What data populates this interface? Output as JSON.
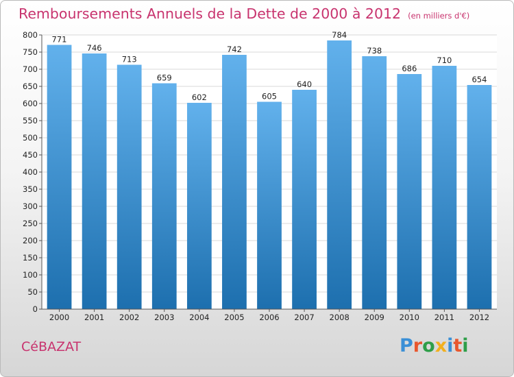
{
  "title": "Remboursements Annuels de la Dette de 2000 à 2012",
  "unit": "(en milliers d'€)",
  "commune": "CéBAZAT",
  "logo": {
    "text": "Proxiti",
    "colors": [
      "#3a8fd6",
      "#e8572e",
      "#2e9e49",
      "#f2b01e",
      "#3a8fd6",
      "#e8572e",
      "#2e9e49"
    ]
  },
  "colors": {
    "title": "#c8336e",
    "bar_top": "#62b1ec",
    "bar_bottom": "#1d6fae",
    "grid": "#d8d8d8"
  },
  "chart_data": {
    "type": "bar",
    "categories": [
      "2000",
      "2001",
      "2002",
      "2003",
      "2004",
      "2005",
      "2006",
      "2007",
      "2008",
      "2009",
      "2010",
      "2011",
      "2012"
    ],
    "values": [
      771,
      746,
      713,
      659,
      602,
      742,
      605,
      640,
      784,
      738,
      686,
      710,
      654
    ],
    "yticks": [
      0,
      50,
      100,
      150,
      200,
      250,
      300,
      350,
      400,
      450,
      500,
      550,
      600,
      650,
      700,
      750,
      800
    ],
    "ylim": [
      0,
      800
    ],
    "grid": true,
    "title": "Remboursements Annuels de la Dette de 2000 à 2012",
    "xlabel": "",
    "ylabel": ""
  }
}
